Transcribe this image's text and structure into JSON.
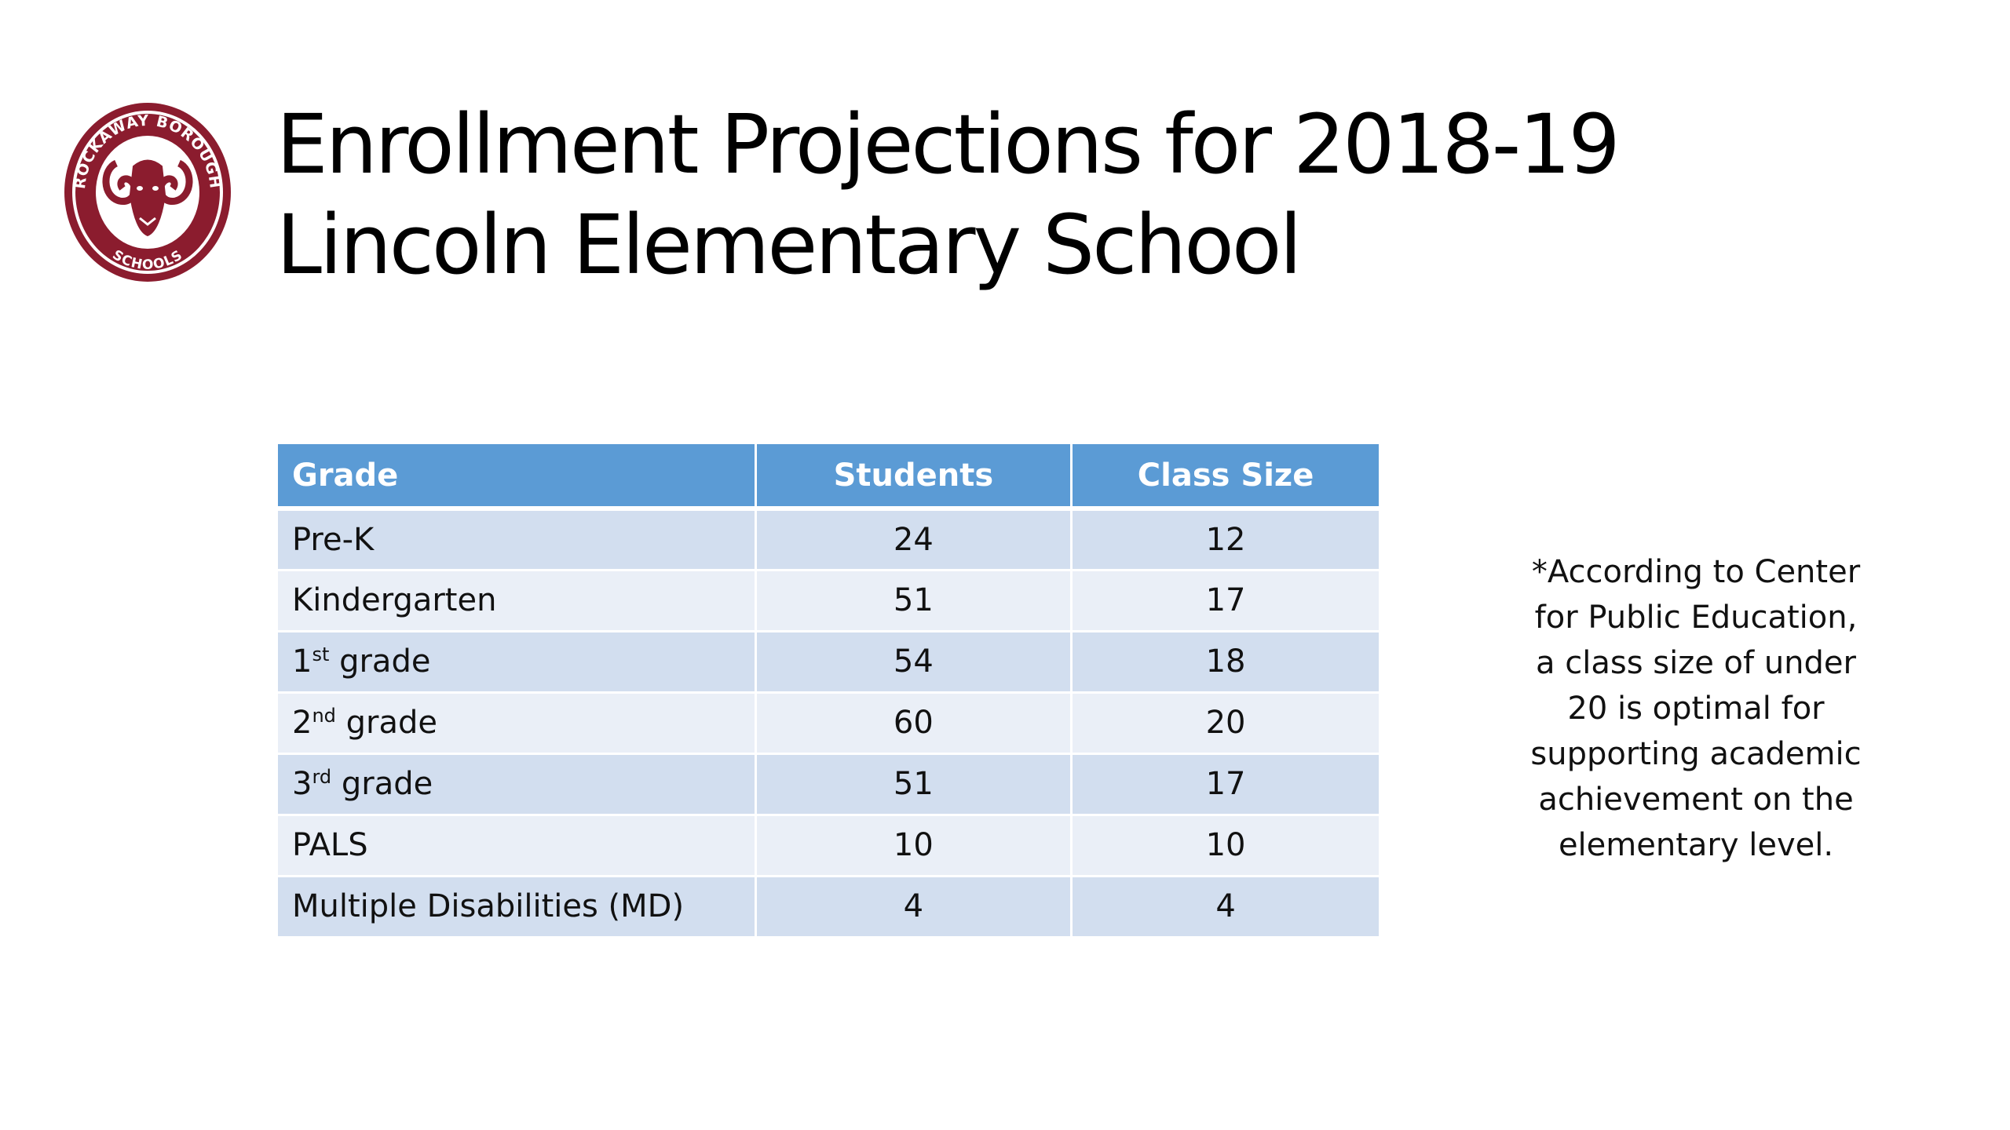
{
  "logo": {
    "text_top": "ROCKAWAY BOROUGH",
    "text_bottom": "SCHOOLS",
    "color": "#8b1c2e"
  },
  "title": {
    "line1": "Enrollment Projections for 2018-19",
    "line2": "Lincoln Elementary School"
  },
  "table": {
    "headers": [
      "Grade",
      "Students",
      "Class Size"
    ],
    "header_color": "#5b9bd5",
    "rows": [
      {
        "grade": "Pre-K",
        "grade_sup": "",
        "grade_suffix": "",
        "students": "24",
        "class_size": "12"
      },
      {
        "grade": "Kindergarten",
        "grade_sup": "",
        "grade_suffix": "",
        "students": "51",
        "class_size": "17"
      },
      {
        "grade": "1",
        "grade_sup": "st",
        "grade_suffix": " grade",
        "students": "54",
        "class_size": "18"
      },
      {
        "grade": "2",
        "grade_sup": "nd",
        "grade_suffix": " grade",
        "students": "60",
        "class_size": "20"
      },
      {
        "grade": "3",
        "grade_sup": "rd",
        "grade_suffix": " grade",
        "students": "51",
        "class_size": "17"
      },
      {
        "grade": "PALS",
        "grade_sup": "",
        "grade_suffix": "",
        "students": "10",
        "class_size": "10"
      },
      {
        "grade": "Multiple Disabilities (MD)",
        "grade_sup": "",
        "grade_suffix": "",
        "students": "4",
        "class_size": "4"
      }
    ]
  },
  "note": {
    "lines": [
      "*According to Center",
      "for Public Education,",
      "a class size of under",
      "20 is optimal for",
      "supporting academic",
      "achievement on the",
      "elementary level."
    ]
  }
}
